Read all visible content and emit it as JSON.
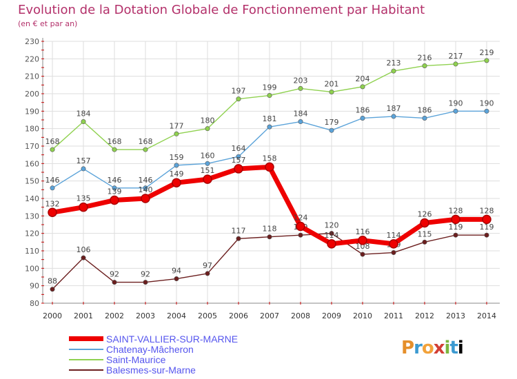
{
  "chart_data": {
    "type": "line",
    "title": "Evolution de la Dotation Globale de Fonctionnement par Habitant",
    "subtitle": "(en € et par an)",
    "xlabel": "",
    "ylabel": "",
    "ylim": [
      80,
      230
    ],
    "yticks": [
      80,
      90,
      100,
      110,
      120,
      130,
      140,
      150,
      160,
      170,
      180,
      190,
      200,
      210,
      220,
      230
    ],
    "grid": true,
    "legend_position": "bottom-left",
    "x": [
      "2000",
      "2001",
      "2002",
      "2003",
      "2004",
      "2005",
      "2006",
      "2007",
      "2008",
      "2009",
      "2010",
      "2011",
      "2012",
      "2013",
      "2014"
    ],
    "series": [
      {
        "name": "Balesmes-sur-Marne",
        "color": "#6b1e1e",
        "values": [
          88,
          106,
          92,
          92,
          94,
          97,
          117,
          118,
          119,
          120,
          108,
          109,
          115,
          119,
          119
        ],
        "labels": [
          "88",
          "106",
          "92",
          "92",
          "94",
          "97",
          "117",
          "118",
          "119",
          "120",
          "108",
          "109",
          "115",
          "119",
          "119"
        ]
      },
      {
        "name": "Saint-Maurice",
        "color": "#8fd14f",
        "values": [
          168,
          184,
          168,
          168,
          177,
          180,
          197,
          199,
          203,
          201,
          204,
          213,
          216,
          217,
          219
        ],
        "labels": [
          "168",
          "184",
          "168",
          "168",
          "177",
          "180",
          "197",
          "199",
          "203",
          "201",
          "204",
          "213",
          "216",
          "217",
          "219"
        ]
      },
      {
        "name": "Chatenay-Mâcheron",
        "color": "#5ba3d9",
        "values": [
          146,
          157,
          146,
          146,
          159,
          160,
          164,
          181,
          184,
          179,
          186,
          187,
          186,
          190,
          190
        ],
        "labels": [
          "146",
          "157",
          "146",
          "146",
          "159",
          "160",
          "164",
          "181",
          "184",
          "179",
          "186",
          "187",
          "186",
          "190",
          "190"
        ]
      },
      {
        "name": "SAINT-VALLIER-SUR-MARNE",
        "color": "#ee0000",
        "values": [
          132,
          135,
          139,
          140,
          149,
          151,
          157,
          158,
          124,
          114,
          116,
          114,
          126,
          128,
          128
        ],
        "labels": [
          "132",
          "135",
          "139",
          "140",
          "149",
          "151",
          "157",
          "158",
          "124",
          "114",
          "116",
          "114",
          "126",
          "128",
          "128"
        ]
      }
    ]
  },
  "legend": [
    {
      "label": "SAINT-VALLIER-SUR-MARNE",
      "color": "#ee0000",
      "text_color": "#5555ee"
    },
    {
      "label": "Chatenay-Mâcheron",
      "color": "#5ba3d9",
      "text_color": "#5555ee"
    },
    {
      "label": "Saint-Maurice",
      "color": "#8fd14f",
      "text_color": "#5555ee"
    },
    {
      "label": "Balesmes-sur-Marne",
      "color": "#6b1e1e",
      "text_color": "#5555ee"
    }
  ],
  "logo": {
    "letters": [
      "P",
      "r",
      "o",
      "x",
      "i",
      "t",
      "i"
    ]
  }
}
